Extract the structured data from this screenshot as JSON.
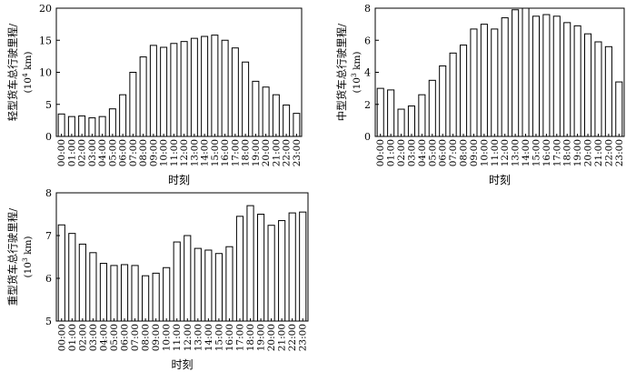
{
  "chart_data": [
    {
      "type": "bar",
      "categories": [
        "00:00",
        "01:00",
        "02:00",
        "03:00",
        "04:00",
        "05:00",
        "06:00",
        "07:00",
        "08:00",
        "09:00",
        "10:00",
        "11:00",
        "12:00",
        "13:00",
        "14:00",
        "15:00",
        "16:00",
        "17:00",
        "18:00",
        "19:00",
        "20:00",
        "21:00",
        "22:00",
        "23:00"
      ],
      "values": [
        3.5,
        3.1,
        3.2,
        2.9,
        3.1,
        4.3,
        6.5,
        10.0,
        12.4,
        14.2,
        13.9,
        14.5,
        14.8,
        15.3,
        15.6,
        15.8,
        15.0,
        13.8,
        11.6,
        8.6,
        7.7,
        6.5,
        4.9,
        3.6
      ],
      "xlabel": "时刻",
      "ylabel": "轻型货车总行驶里程/",
      "yunit": "(10",
      "yunit_exp": "4",
      "yunit_tail": " km)",
      "ylim": [
        0,
        20
      ],
      "yticks": [
        0,
        5,
        10,
        15,
        20
      ],
      "grid": false
    },
    {
      "type": "bar",
      "categories": [
        "00:00",
        "01:00",
        "02:00",
        "03:00",
        "04:00",
        "05:00",
        "06:00",
        "07:00",
        "08:00",
        "09:00",
        "10:00",
        "11:00",
        "12:00",
        "13:00",
        "14:00",
        "15:00",
        "16:00",
        "17:00",
        "18:00",
        "19:00",
        "20:00",
        "21:00",
        "22:00",
        "23:00"
      ],
      "values": [
        3.0,
        2.9,
        1.7,
        1.9,
        2.6,
        3.5,
        4.4,
        5.2,
        5.7,
        6.7,
        7.0,
        6.7,
        7.4,
        7.9,
        8.0,
        7.5,
        7.6,
        7.5,
        7.1,
        6.9,
        6.4,
        5.9,
        5.6,
        3.4
      ],
      "xlabel": "时刻",
      "ylabel": "中型货车总行驶里程/",
      "yunit": "(10",
      "yunit_exp": "3",
      "yunit_tail": " km)",
      "ylim": [
        0,
        8
      ],
      "yticks": [
        0,
        2,
        4,
        6,
        8
      ],
      "grid": false
    },
    {
      "type": "bar",
      "categories": [
        "00:00",
        "01:00",
        "02:00",
        "03:00",
        "04:00",
        "05:00",
        "06:00",
        "07:00",
        "08:00",
        "09:00",
        "10:00",
        "11:00",
        "12:00",
        "13:00",
        "14:00",
        "15:00",
        "16:00",
        "17:00",
        "18:00",
        "19:00",
        "20:00",
        "21:00",
        "22:00",
        "23:00"
      ],
      "values": [
        7.25,
        7.05,
        6.8,
        6.6,
        6.35,
        6.3,
        6.32,
        6.3,
        6.06,
        6.12,
        6.25,
        6.85,
        7.0,
        6.7,
        6.66,
        6.58,
        6.74,
        7.45,
        7.7,
        7.5,
        7.24,
        7.35,
        7.53,
        7.55
      ],
      "xlabel": "时刻",
      "ylabel": "重型货车总行驶里程/",
      "yunit": "(10",
      "yunit_exp": "3",
      "yunit_tail": " km)",
      "ylim": [
        5,
        8
      ],
      "yticks": [
        5,
        6,
        7,
        8
      ],
      "grid": false
    }
  ]
}
